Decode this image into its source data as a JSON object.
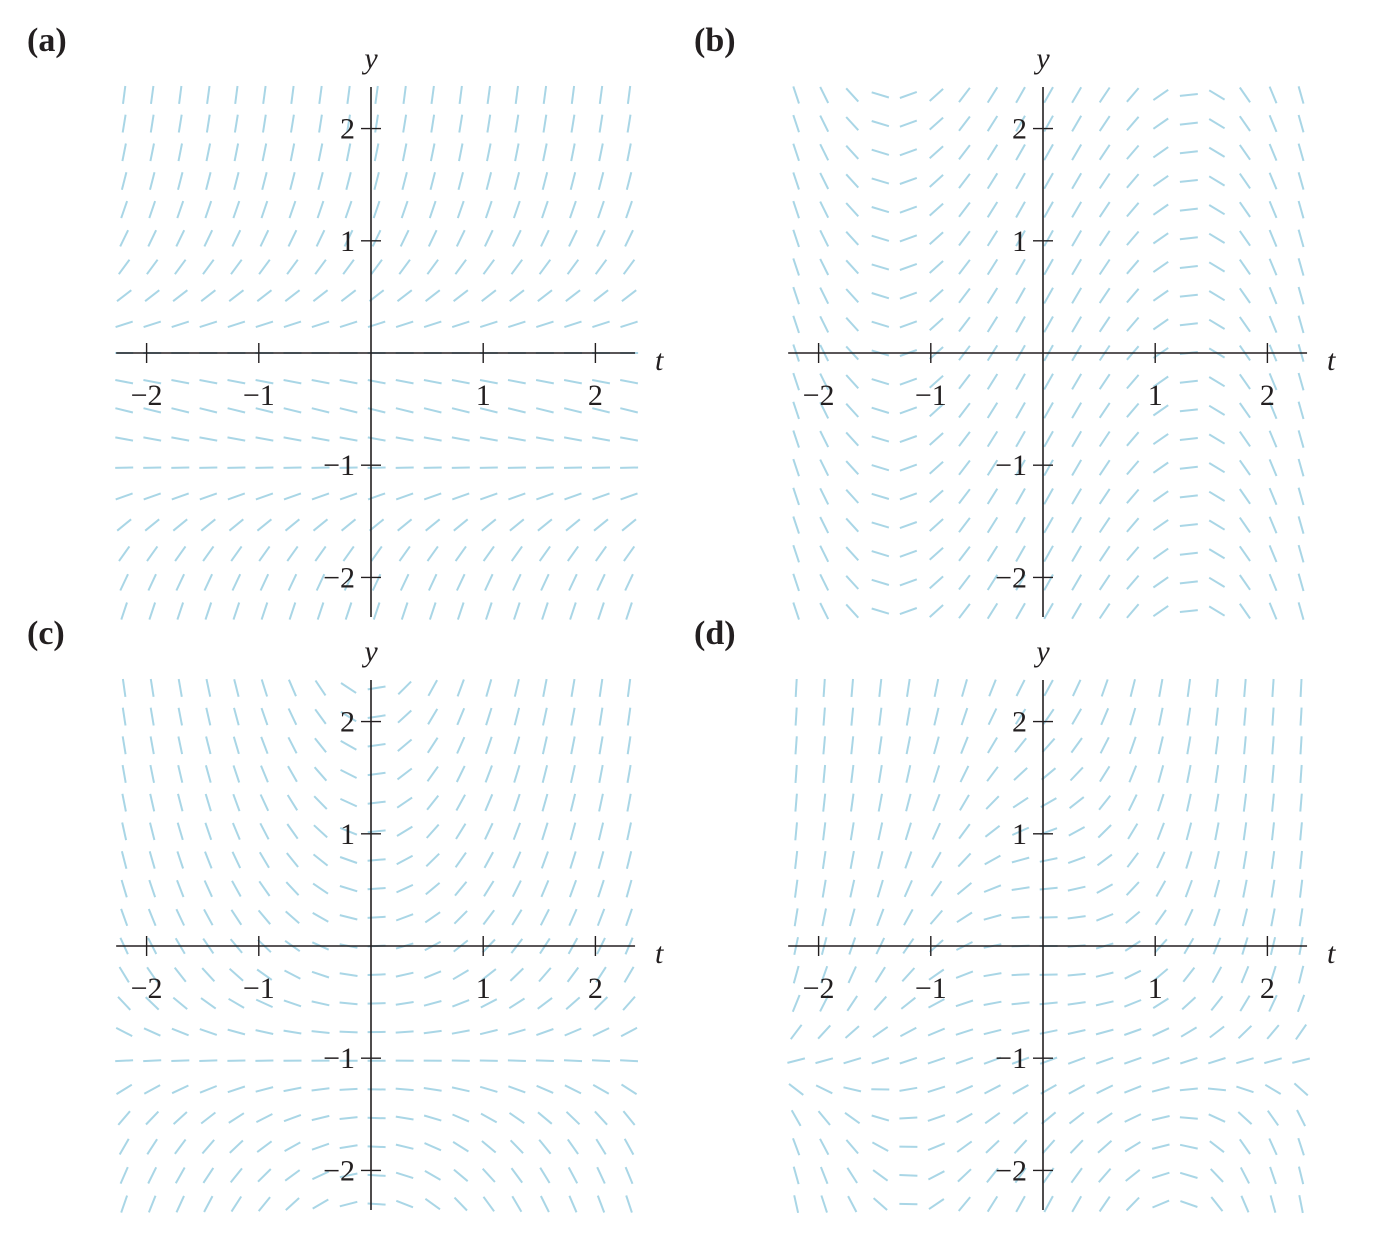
{
  "panels": [
    {
      "label": "(a)",
      "field": "a",
      "xlabel": "t",
      "ylabel": "y",
      "xticks": [
        -2,
        -1,
        1,
        2
      ],
      "yticks": [
        2,
        1,
        -1,
        -2
      ],
      "xtick_labels": [
        "−2",
        "−1",
        "1",
        "2"
      ],
      "ytick_labels": [
        "2",
        "1",
        "−1",
        "−2"
      ]
    },
    {
      "label": "(b)",
      "field": "b",
      "xlabel": "t",
      "ylabel": "y",
      "xticks": [
        -2,
        -1,
        1,
        2
      ],
      "yticks": [
        2,
        1,
        -1,
        -2
      ],
      "xtick_labels": [
        "−2",
        "−1",
        "1",
        "2"
      ],
      "ytick_labels": [
        "2",
        "1",
        "−1",
        "−2"
      ]
    },
    {
      "label": "(c)",
      "field": "c",
      "xlabel": "t",
      "ylabel": "y",
      "xticks": [
        -2,
        -1,
        1,
        2
      ],
      "yticks": [
        2,
        1,
        -1,
        -2
      ],
      "xtick_labels": [
        "−2",
        "−1",
        "1",
        "2"
      ],
      "ytick_labels": [
        "2",
        "1",
        "−1",
        "−2"
      ]
    },
    {
      "label": "(d)",
      "field": "d",
      "xlabel": "t",
      "ylabel": "y",
      "xticks": [
        -2,
        -1,
        1,
        2
      ],
      "yticks": [
        2,
        1,
        -1,
        -2
      ],
      "xtick_labels": [
        "−2",
        "−1",
        "1",
        "2"
      ],
      "ytick_labels": [
        "2",
        "1",
        "−1",
        "−2"
      ]
    }
  ],
  "colors": {
    "slope": "#a9d6e6",
    "axis": "#231f20"
  }
}
